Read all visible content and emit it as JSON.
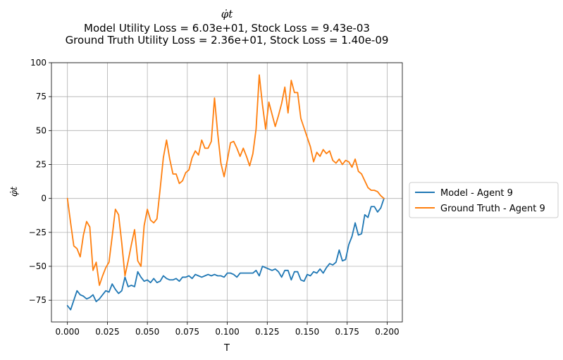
{
  "chart_data": {
    "type": "line",
    "title": "φ̇t",
    "subtitle_lines": [
      "Model Utility Loss = 6.03e+01, Stock Loss = 9.43e-03",
      "Ground Truth Utility Loss = 2.36e+01, Stock Loss = 1.40e-09"
    ],
    "xlabel": "T",
    "ylabel": "φ̇t",
    "xlim": [
      -0.01,
      0.2095
    ],
    "ylim": [
      -91,
      100
    ],
    "xticks": [
      0.0,
      0.025,
      0.05,
      0.075,
      0.1,
      0.125,
      0.15,
      0.175,
      0.2
    ],
    "xtick_labels": [
      "0.000",
      "0.025",
      "0.050",
      "0.075",
      "0.100",
      "0.125",
      "0.150",
      "0.175",
      "0.200"
    ],
    "yticks": [
      -75,
      -50,
      -25,
      0,
      25,
      50,
      75,
      100
    ],
    "ytick_labels": [
      "−75",
      "−50",
      "−25",
      "0",
      "25",
      "50",
      "75",
      "100"
    ],
    "grid": true,
    "legend_position": "right-outside",
    "series": [
      {
        "name": "Model - Agent 9",
        "color": "#1f77b4",
        "x": [
          0.0,
          0.002,
          0.004,
          0.006,
          0.008,
          0.01,
          0.012,
          0.014,
          0.016,
          0.018,
          0.02,
          0.022,
          0.024,
          0.026,
          0.028,
          0.03,
          0.032,
          0.034,
          0.036,
          0.038,
          0.04,
          0.042,
          0.044,
          0.046,
          0.048,
          0.05,
          0.052,
          0.054,
          0.056,
          0.058,
          0.06,
          0.062,
          0.064,
          0.066,
          0.068,
          0.07,
          0.072,
          0.074,
          0.076,
          0.078,
          0.08,
          0.082,
          0.084,
          0.086,
          0.088,
          0.09,
          0.092,
          0.094,
          0.096,
          0.098,
          0.1,
          0.102,
          0.104,
          0.106,
          0.108,
          0.11,
          0.112,
          0.114,
          0.116,
          0.118,
          0.12,
          0.122,
          0.124,
          0.126,
          0.128,
          0.13,
          0.132,
          0.134,
          0.136,
          0.138,
          0.14,
          0.142,
          0.144,
          0.146,
          0.148,
          0.15,
          0.152,
          0.154,
          0.156,
          0.158,
          0.16,
          0.162,
          0.164,
          0.166,
          0.168,
          0.17,
          0.172,
          0.174,
          0.176,
          0.178,
          0.18,
          0.182,
          0.184,
          0.186,
          0.188,
          0.19,
          0.192,
          0.194,
          0.196,
          0.198
        ],
        "values": [
          -79,
          -82,
          -75,
          -68,
          -71,
          -72,
          -74,
          -73,
          -71,
          -76,
          -74,
          -71,
          -68,
          -69,
          -63,
          -67,
          -70,
          -68,
          -58,
          -65,
          -64,
          -65,
          -54,
          -58,
          -61,
          -60,
          -62,
          -59,
          -62,
          -61,
          -57,
          -59,
          -60,
          -60,
          -59,
          -61,
          -58,
          -58,
          -57,
          -59,
          -56,
          -57,
          -58,
          -57,
          -56,
          -57,
          -56,
          -57,
          -57,
          -58,
          -55,
          -55,
          -56,
          -58,
          -55,
          -55,
          -55,
          -55,
          -55,
          -53,
          -57,
          -50,
          -51,
          -52,
          -53,
          -52,
          -54,
          -58,
          -53,
          -53,
          -60,
          -54,
          -54,
          -60,
          -61,
          -56,
          -57,
          -54,
          -55,
          -52,
          -55,
          -51,
          -48,
          -49,
          -47,
          -38,
          -46,
          -45,
          -34,
          -28,
          -18,
          -27,
          -26,
          -12,
          -14,
          -6,
          -6,
          -10,
          -7,
          0
        ]
      },
      {
        "name": "Ground Truth - Agent 9",
        "color": "#ff7f0e",
        "x": [
          0.0,
          0.002,
          0.004,
          0.006,
          0.008,
          0.01,
          0.012,
          0.014,
          0.016,
          0.018,
          0.02,
          0.022,
          0.024,
          0.026,
          0.028,
          0.03,
          0.032,
          0.034,
          0.036,
          0.038,
          0.04,
          0.042,
          0.044,
          0.046,
          0.048,
          0.05,
          0.052,
          0.054,
          0.056,
          0.058,
          0.06,
          0.062,
          0.064,
          0.066,
          0.068,
          0.07,
          0.072,
          0.074,
          0.076,
          0.078,
          0.08,
          0.082,
          0.084,
          0.086,
          0.088,
          0.09,
          0.092,
          0.094,
          0.096,
          0.098,
          0.1,
          0.102,
          0.104,
          0.106,
          0.108,
          0.11,
          0.112,
          0.114,
          0.116,
          0.118,
          0.12,
          0.122,
          0.124,
          0.126,
          0.128,
          0.13,
          0.132,
          0.134,
          0.136,
          0.138,
          0.14,
          0.142,
          0.144,
          0.146,
          0.148,
          0.15,
          0.152,
          0.154,
          0.156,
          0.158,
          0.16,
          0.162,
          0.164,
          0.166,
          0.168,
          0.17,
          0.172,
          0.174,
          0.176,
          0.178,
          0.18,
          0.182,
          0.184,
          0.186,
          0.188,
          0.19,
          0.192,
          0.194,
          0.196,
          0.198
        ],
        "values": [
          0,
          -18,
          -35,
          -37,
          -43,
          -27,
          -17,
          -21,
          -53,
          -47,
          -64,
          -57,
          -51,
          -47,
          -28,
          -8,
          -12,
          -33,
          -57,
          -46,
          -34,
          -23,
          -46,
          -50,
          -20,
          -8,
          -16,
          -18,
          -15,
          7,
          30,
          43,
          29,
          18,
          18,
          11,
          13,
          19,
          21,
          30,
          35,
          32,
          43,
          37,
          37,
          42,
          74,
          48,
          26,
          16,
          28,
          41,
          42,
          37,
          31,
          37,
          31,
          24,
          33,
          51,
          91,
          69,
          51,
          71,
          62,
          53,
          61,
          70,
          82,
          63,
          87,
          78,
          78,
          59,
          52,
          45,
          38,
          27,
          34,
          31,
          36,
          33,
          35,
          28,
          26,
          29,
          25,
          28,
          27,
          23,
          29,
          20,
          18,
          13,
          8,
          6,
          6,
          5,
          2,
          0
        ]
      }
    ]
  }
}
